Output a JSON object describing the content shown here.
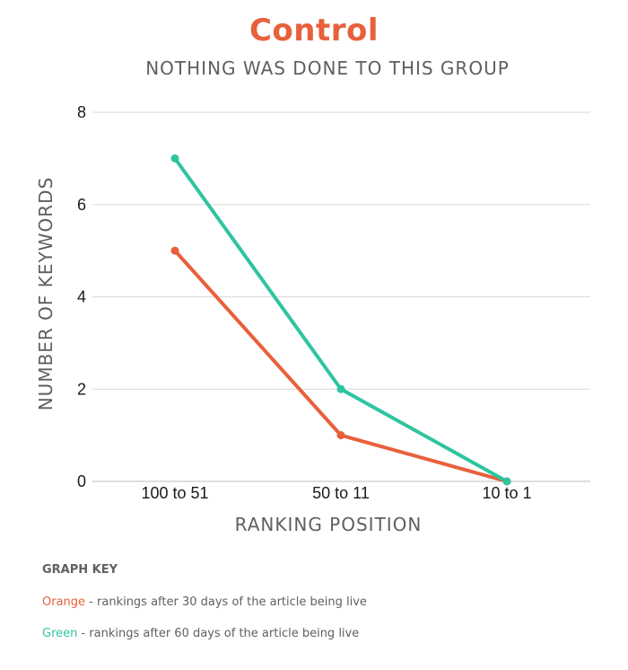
{
  "chart_data": {
    "type": "line",
    "title": "Control",
    "subtitle": "NOTHING WAS DONE TO THIS GROUP",
    "xlabel": "RANKING POSITION",
    "ylabel": "NUMBER OF KEYWORDS",
    "categories": [
      "100 to 51",
      "50 to 11",
      "10 to 1"
    ],
    "ylim": [
      0,
      8
    ],
    "yticks": [
      "0",
      "2",
      "4",
      "6",
      "8"
    ],
    "grid": true,
    "series": [
      {
        "color": "#E8603C",
        "values": [
          5,
          1,
          0
        ]
      },
      {
        "color": "#2EC4A0",
        "values": [
          7,
          2,
          0
        ]
      }
    ]
  },
  "key": {
    "title": "GRAPH KEY",
    "orange_word": "Orange",
    "orange_text": " - rankings after 30 days of the article being live",
    "green_word": "Green",
    "green_text": " - rankings after 60 days of the article being live"
  }
}
